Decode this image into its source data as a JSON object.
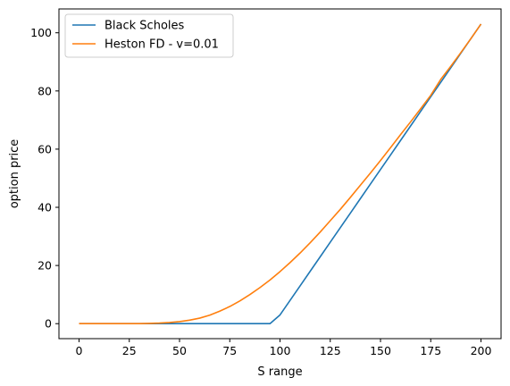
{
  "chart_data": {
    "type": "line",
    "xlabel": "S range",
    "ylabel": "option price",
    "xlim": [
      -10,
      210
    ],
    "ylim": [
      -5.15,
      108.2
    ],
    "xticks": [
      0,
      25,
      50,
      75,
      100,
      125,
      150,
      175,
      200
    ],
    "yticks": [
      0,
      20,
      40,
      60,
      80,
      100
    ],
    "grid": false,
    "legend_position": "upper-left",
    "series": [
      {
        "name": "Black Scholes",
        "color": "#1f77b4",
        "x": [
          0,
          5,
          10,
          15,
          20,
          25,
          30,
          35,
          40,
          45,
          50,
          55,
          60,
          65,
          70,
          75,
          80,
          85,
          90,
          95,
          100,
          105,
          110,
          115,
          120,
          125,
          130,
          135,
          140,
          145,
          150,
          155,
          160,
          165,
          170,
          175,
          180,
          185,
          190,
          195,
          200
        ],
        "y": [
          0,
          0,
          0,
          0,
          0,
          0,
          0,
          0,
          0,
          0,
          0,
          0,
          0,
          0,
          0,
          0,
          0,
          0,
          0,
          0,
          3,
          8,
          13,
          18,
          23,
          28,
          33,
          38,
          43,
          48,
          53,
          58,
          63,
          68,
          73,
          78,
          83,
          88,
          93,
          98,
          103
        ]
      },
      {
        "name": "Heston FD - v=0.01",
        "color": "#ff7f0e",
        "x": [
          0,
          5,
          10,
          15,
          20,
          25,
          30,
          35,
          40,
          45,
          50,
          55,
          60,
          65,
          70,
          75,
          80,
          85,
          90,
          95,
          100,
          105,
          110,
          115,
          120,
          125,
          130,
          135,
          140,
          145,
          150,
          155,
          160,
          165,
          170,
          175,
          180,
          185,
          190,
          195,
          200
        ],
        "y": [
          0,
          0,
          0,
          0,
          0,
          0.01,
          0.03,
          0.08,
          0.2,
          0.4,
          0.7,
          1.2,
          1.9,
          2.9,
          4.3,
          5.9,
          7.8,
          10.0,
          12.4,
          15.0,
          17.9,
          21.0,
          24.3,
          27.8,
          31.5,
          35.4,
          39.3,
          43.4,
          47.6,
          51.8,
          56.1,
          60.5,
          65.0,
          69.4,
          73.9,
          78.5,
          84.0,
          88.5,
          93.2,
          98.0,
          103.0
        ]
      }
    ]
  }
}
